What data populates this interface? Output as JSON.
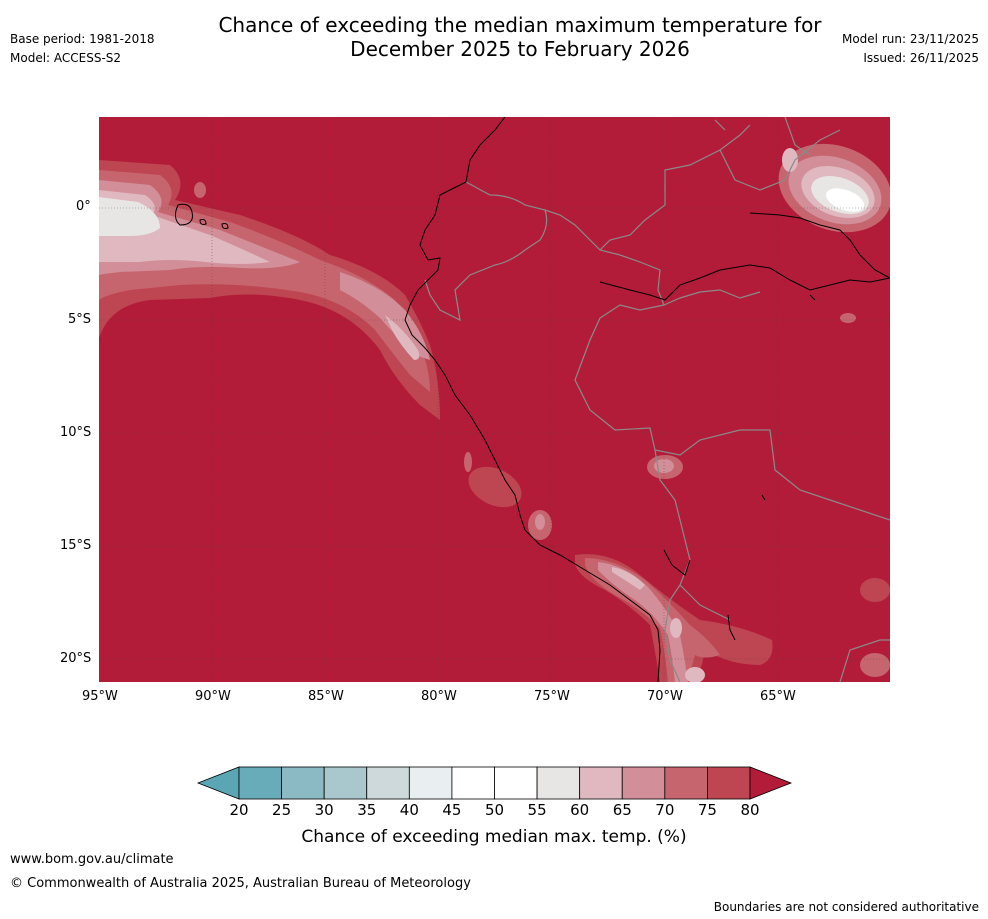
{
  "header": {
    "title_line1": "Chance of exceeding the median maximum temperature for",
    "title_line2": "December 2025 to February 2026",
    "base_period": "Base period: 1981-2018",
    "model": "Model: ACCESS-S2",
    "model_run": "Model run: 23/11/2025",
    "issued": "Issued: 26/11/2025"
  },
  "map": {
    "lat_labels": [
      "0°",
      "5°S",
      "10°S",
      "15°S",
      "20°S"
    ],
    "lon_labels": [
      "95°W",
      "90°W",
      "85°W",
      "80°W",
      "75°W",
      "70°W",
      "65°W"
    ],
    "background_color": "#b31c38"
  },
  "colorbar": {
    "ticks": [
      "20",
      "25",
      "30",
      "35",
      "40",
      "45",
      "50",
      "55",
      "60",
      "65",
      "70",
      "75",
      "80"
    ],
    "colors": [
      "#5aa6b4",
      "#69acb9",
      "#8bb9c4",
      "#a8c8cd",
      "#cdd9da",
      "#e9eef1",
      "#ffffff",
      "#ffffff",
      "#e8e6e5",
      "#e0b8bf",
      "#d28e99",
      "#c7656f",
      "#bd4652",
      "#b31c38"
    ],
    "label": "Chance of exceeding median max. temp. (%)"
  },
  "footer": {
    "url": "www.bom.gov.au/climate",
    "copyright": "© Commonwealth of Australia 2025, Australian Bureau of Meteorology",
    "disclaimer": "Boundaries are not considered authoritative"
  }
}
